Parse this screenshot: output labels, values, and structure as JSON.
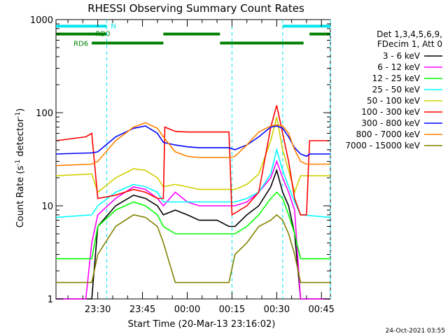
{
  "chart_data": {
    "type": "line",
    "title": "RHESSI Observing Summary Count Rates",
    "xlabel": "Start Time (20-Mar-13 23:16:02)",
    "ylabel_main": "Count Rate (s",
    "ylabel_exp1": "-1",
    "ylabel_mid": " detector",
    "ylabel_exp2": "-1",
    "ylabel_end": ")",
    "yscale": "log",
    "ylim": [
      1,
      1000
    ],
    "xlim_minutes": [
      0,
      92
    ],
    "x_ticks": [
      {
        "min": 14,
        "label": "23:30"
      },
      {
        "min": 29,
        "label": "23:45"
      },
      {
        "min": 44,
        "label": "00:00"
      },
      {
        "min": 59,
        "label": "00:15"
      },
      {
        "min": 74,
        "label": "00:30"
      },
      {
        "min": 89,
        "label": "00:45"
      }
    ],
    "y_ticks": [
      {
        "v": 1,
        "label": "1"
      },
      {
        "v": 10,
        "label": "10"
      },
      {
        "v": 100,
        "label": "100"
      },
      {
        "v": 1000,
        "label": "1000"
      }
    ],
    "legend_header": [
      "Det 1,3,4,5,6,9,",
      "FDecim 1, Att 0"
    ],
    "legend_placement": "right",
    "flags": [
      {
        "label": "N",
        "color": "#00e5ee",
        "segments": [
          [
            0,
            17
          ],
          [
            76,
            92
          ]
        ],
        "y": 850
      },
      {
        "label": "RD0",
        "color": "#008000",
        "segments": [
          [
            0,
            17
          ],
          [
            36,
            55
          ],
          [
            85,
            92
          ]
        ],
        "y": 700
      },
      {
        "label": "RD6",
        "color": "#008000",
        "segments": [
          [
            12,
            36
          ],
          [
            55,
            83
          ]
        ],
        "y": 560
      }
    ],
    "vlines": [
      17,
      59,
      76,
      92
    ],
    "series": [
      {
        "name": "3 - 6 keV",
        "color": "#000000",
        "values": [
          [
            0,
            1
          ],
          [
            5,
            1
          ],
          [
            12,
            1
          ],
          [
            14,
            6
          ],
          [
            20,
            10
          ],
          [
            26,
            13
          ],
          [
            30,
            12
          ],
          [
            34,
            10
          ],
          [
            36,
            8
          ],
          [
            40,
            9
          ],
          [
            44,
            8
          ],
          [
            48,
            7
          ],
          [
            54,
            7
          ],
          [
            58,
            6
          ],
          [
            60,
            6
          ],
          [
            64,
            8
          ],
          [
            68,
            10
          ],
          [
            72,
            16
          ],
          [
            74,
            24
          ],
          [
            76,
            14
          ],
          [
            78,
            10
          ],
          [
            80,
            5
          ],
          [
            82,
            1
          ],
          [
            92,
            1
          ]
        ]
      },
      {
        "name": "6 - 12 keV",
        "color": "#ff00ff",
        "values": [
          [
            0,
            1
          ],
          [
            10,
            1
          ],
          [
            12,
            4
          ],
          [
            14,
            8
          ],
          [
            20,
            12
          ],
          [
            26,
            16
          ],
          [
            30,
            15
          ],
          [
            34,
            12
          ],
          [
            36,
            10
          ],
          [
            40,
            14
          ],
          [
            44,
            11
          ],
          [
            48,
            10
          ],
          [
            54,
            10
          ],
          [
            58,
            10
          ],
          [
            60,
            10
          ],
          [
            64,
            11
          ],
          [
            68,
            14
          ],
          [
            72,
            20
          ],
          [
            74,
            30
          ],
          [
            76,
            20
          ],
          [
            78,
            14
          ],
          [
            80,
            9
          ],
          [
            82,
            1
          ],
          [
            92,
            1
          ]
        ]
      },
      {
        "name": "12 - 25 keV",
        "color": "#00ff00",
        "values": [
          [
            0,
            2.7
          ],
          [
            12,
            2.7
          ],
          [
            14,
            6
          ],
          [
            20,
            9
          ],
          [
            26,
            11
          ],
          [
            30,
            10
          ],
          [
            34,
            8
          ],
          [
            36,
            6
          ],
          [
            40,
            5
          ],
          [
            44,
            5
          ],
          [
            48,
            5
          ],
          [
            54,
            5
          ],
          [
            58,
            5
          ],
          [
            60,
            5
          ],
          [
            64,
            6
          ],
          [
            68,
            8
          ],
          [
            72,
            12
          ],
          [
            74,
            14
          ],
          [
            76,
            12
          ],
          [
            78,
            8
          ],
          [
            80,
            5
          ],
          [
            82,
            2.7
          ],
          [
            92,
            2.7
          ]
        ]
      },
      {
        "name": "25 - 50 keV",
        "color": "#00ffff",
        "values": [
          [
            0,
            7.5
          ],
          [
            12,
            8
          ],
          [
            14,
            10
          ],
          [
            20,
            14
          ],
          [
            26,
            17
          ],
          [
            30,
            16
          ],
          [
            34,
            14
          ],
          [
            36,
            11
          ],
          [
            40,
            11
          ],
          [
            44,
            11
          ],
          [
            48,
            11
          ],
          [
            54,
            11
          ],
          [
            58,
            11
          ],
          [
            60,
            11
          ],
          [
            64,
            12
          ],
          [
            68,
            14
          ],
          [
            72,
            22
          ],
          [
            74,
            40
          ],
          [
            76,
            24
          ],
          [
            78,
            16
          ],
          [
            80,
            11
          ],
          [
            82,
            8
          ],
          [
            92,
            7.5
          ]
        ]
      },
      {
        "name": "50 - 100 keV",
        "color": "#d0d000",
        "values": [
          [
            0,
            21
          ],
          [
            12,
            22
          ],
          [
            14,
            14
          ],
          [
            20,
            20
          ],
          [
            26,
            25
          ],
          [
            30,
            24
          ],
          [
            34,
            20
          ],
          [
            36,
            16
          ],
          [
            40,
            17
          ],
          [
            44,
            16
          ],
          [
            48,
            15
          ],
          [
            54,
            15
          ],
          [
            58,
            15
          ],
          [
            60,
            15
          ],
          [
            64,
            17
          ],
          [
            68,
            22
          ],
          [
            72,
            50
          ],
          [
            74,
            90
          ],
          [
            76,
            40
          ],
          [
            78,
            24
          ],
          [
            80,
            14
          ],
          [
            82,
            21
          ],
          [
            92,
            21
          ]
        ]
      },
      {
        "name": "100 - 300 keV",
        "color": "#ff0000",
        "values": [
          [
            0,
            50
          ],
          [
            10,
            55
          ],
          [
            12,
            60
          ],
          [
            14,
            12
          ],
          [
            20,
            13
          ],
          [
            26,
            15
          ],
          [
            30,
            14
          ],
          [
            34,
            12
          ],
          [
            36,
            12
          ],
          [
            36.5,
            70
          ],
          [
            40,
            63
          ],
          [
            44,
            62
          ],
          [
            48,
            62
          ],
          [
            54,
            62
          ],
          [
            58,
            62
          ],
          [
            59,
            8
          ],
          [
            64,
            10
          ],
          [
            68,
            14
          ],
          [
            72,
            70
          ],
          [
            74,
            120
          ],
          [
            76,
            60
          ],
          [
            78,
            30
          ],
          [
            80,
            12
          ],
          [
            82,
            8
          ],
          [
            84,
            8
          ],
          [
            85,
            50
          ],
          [
            92,
            50
          ]
        ]
      },
      {
        "name": "300 - 800 keV",
        "color": "#0000ff",
        "values": [
          [
            0,
            36
          ],
          [
            12,
            37
          ],
          [
            14,
            38
          ],
          [
            20,
            55
          ],
          [
            26,
            68
          ],
          [
            30,
            72
          ],
          [
            34,
            60
          ],
          [
            36,
            48
          ],
          [
            40,
            45
          ],
          [
            44,
            43
          ],
          [
            48,
            42
          ],
          [
            54,
            42
          ],
          [
            58,
            42
          ],
          [
            60,
            40
          ],
          [
            64,
            45
          ],
          [
            68,
            55
          ],
          [
            72,
            70
          ],
          [
            74,
            72
          ],
          [
            76,
            68
          ],
          [
            78,
            55
          ],
          [
            80,
            42
          ],
          [
            82,
            36
          ],
          [
            84,
            34
          ],
          [
            85,
            36
          ],
          [
            92,
            36
          ]
        ]
      },
      {
        "name": "800 - 7000 keV",
        "color": "#ff8000",
        "values": [
          [
            0,
            27
          ],
          [
            12,
            28
          ],
          [
            14,
            30
          ],
          [
            20,
            50
          ],
          [
            26,
            70
          ],
          [
            30,
            78
          ],
          [
            34,
            68
          ],
          [
            36,
            55
          ],
          [
            40,
            38
          ],
          [
            44,
            34
          ],
          [
            48,
            33
          ],
          [
            54,
            33
          ],
          [
            58,
            33
          ],
          [
            60,
            34
          ],
          [
            64,
            45
          ],
          [
            68,
            62
          ],
          [
            72,
            72
          ],
          [
            74,
            74
          ],
          [
            76,
            72
          ],
          [
            78,
            60
          ],
          [
            80,
            40
          ],
          [
            82,
            30
          ],
          [
            84,
            28
          ],
          [
            85,
            28
          ],
          [
            92,
            28
          ]
        ]
      },
      {
        "name": "7000 - 15000 keV",
        "color": "#808000",
        "values": [
          [
            0,
            1.5
          ],
          [
            12,
            1.5
          ],
          [
            14,
            3
          ],
          [
            20,
            6
          ],
          [
            26,
            8
          ],
          [
            30,
            7.5
          ],
          [
            34,
            6
          ],
          [
            36,
            4
          ],
          [
            40,
            1.5
          ],
          [
            44,
            1.5
          ],
          [
            48,
            1.5
          ],
          [
            54,
            1.5
          ],
          [
            58,
            1.5
          ],
          [
            60,
            3
          ],
          [
            64,
            4
          ],
          [
            68,
            6
          ],
          [
            72,
            7
          ],
          [
            74,
            8
          ],
          [
            76,
            7
          ],
          [
            78,
            5
          ],
          [
            80,
            3
          ],
          [
            82,
            1.5
          ],
          [
            92,
            1.5
          ]
        ]
      }
    ]
  },
  "footer": {
    "timestamp": "24-Oct-2021 03:55"
  }
}
